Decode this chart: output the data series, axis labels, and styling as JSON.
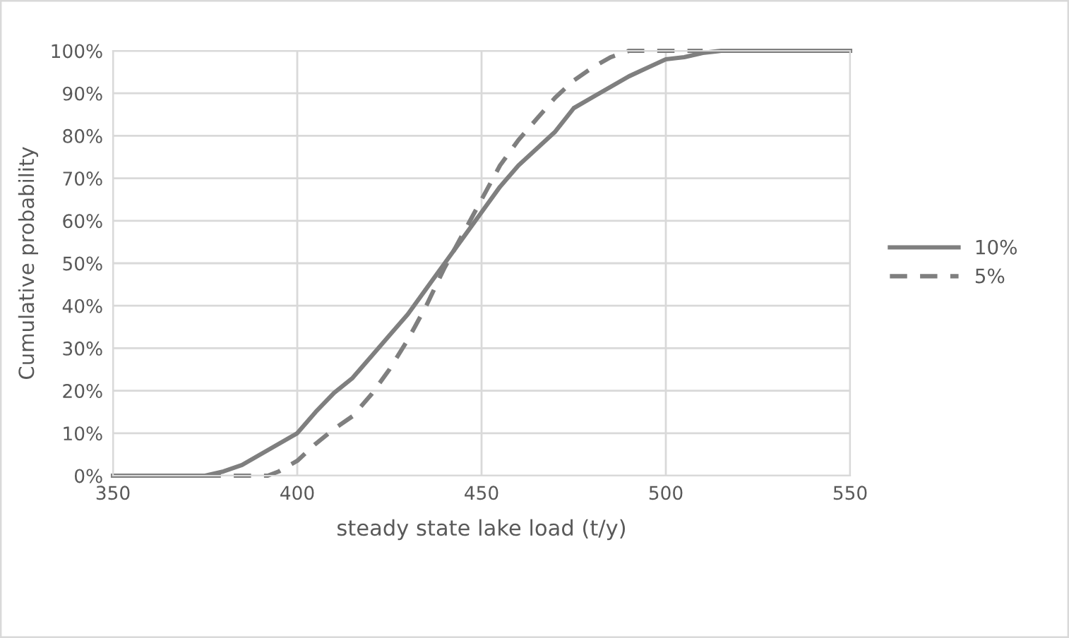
{
  "chart_data": {
    "type": "line",
    "xlabel": "steady state lake load (t/y)",
    "ylabel": "Cumulative probability",
    "xlim": [
      350,
      550
    ],
    "xticks": [
      350,
      400,
      450,
      500,
      550
    ],
    "ylim": [
      0,
      1
    ],
    "yticks": [
      {
        "value": 0,
        "label": "0%"
      },
      {
        "value": 0.1,
        "label": "10%"
      },
      {
        "value": 0.2,
        "label": "20%"
      },
      {
        "value": 0.3,
        "label": "30%"
      },
      {
        "value": 0.4,
        "label": "40%"
      },
      {
        "value": 0.5,
        "label": "50%"
      },
      {
        "value": 0.6,
        "label": "60%"
      },
      {
        "value": 0.7,
        "label": "70%"
      },
      {
        "value": 0.8,
        "label": "80%"
      },
      {
        "value": 0.9,
        "label": "90%"
      },
      {
        "value": 1,
        "label": "100%"
      }
    ],
    "grid": true,
    "legend": "right",
    "marker": "none",
    "series": [
      {
        "name": "10%",
        "color": "#7f7f7f",
        "line_style": "solid",
        "x": [
          350,
          360,
          370,
          375,
          380,
          385,
          390,
          400,
          405,
          410,
          415,
          420,
          425,
          430,
          435,
          440,
          445,
          450,
          455,
          460,
          465,
          470,
          475,
          480,
          485,
          490,
          495,
          500,
          505,
          510,
          515,
          550
        ],
        "values": [
          0,
          0,
          0,
          0,
          0.01,
          0.025,
          0.05,
          0.1,
          0.15,
          0.195,
          0.23,
          0.28,
          0.33,
          0.38,
          0.44,
          0.5,
          0.56,
          0.62,
          0.68,
          0.73,
          0.77,
          0.81,
          0.865,
          0.89,
          0.915,
          0.94,
          0.96,
          0.98,
          0.985,
          0.995,
          1,
          1
        ]
      },
      {
        "name": "5%",
        "color": "#7f7f7f",
        "line_style": "dashed",
        "x": [
          350,
          370,
          385,
          392,
          395,
          400,
          405,
          410,
          415,
          420,
          425,
          430,
          435,
          440,
          445,
          450,
          455,
          460,
          465,
          470,
          475,
          480,
          485,
          490,
          500,
          510
        ],
        "values": [
          0,
          0,
          0,
          0,
          0.01,
          0.035,
          0.075,
          0.11,
          0.14,
          0.19,
          0.25,
          0.32,
          0.4,
          0.49,
          0.57,
          0.65,
          0.73,
          0.79,
          0.84,
          0.89,
          0.93,
          0.96,
          0.985,
          1,
          1,
          1
        ]
      }
    ]
  }
}
